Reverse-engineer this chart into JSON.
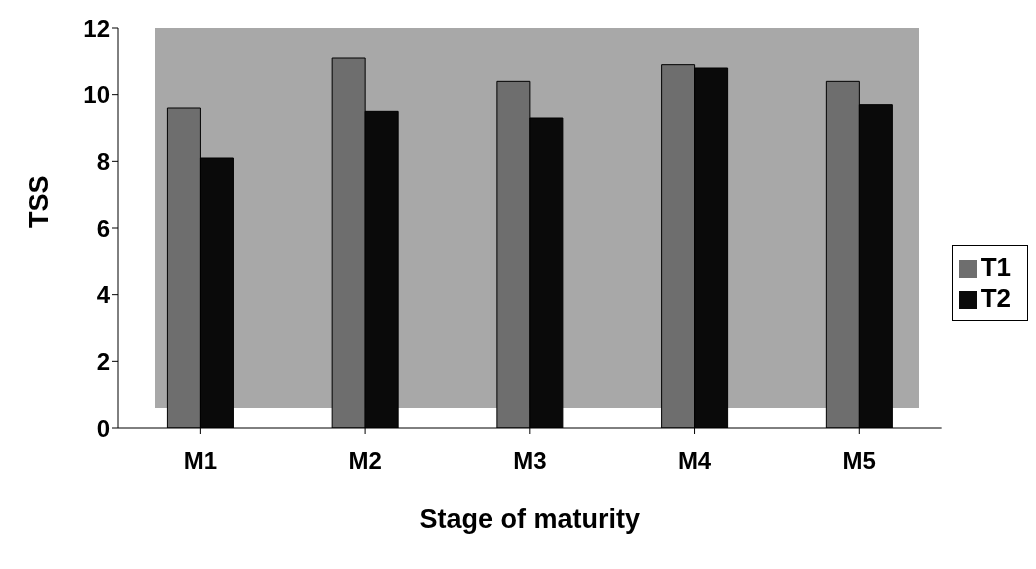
{
  "chart_data": {
    "type": "bar",
    "xlabel": "Stage of maturity",
    "ylabel": "TSS",
    "categories": [
      "M1",
      "M2",
      "M3",
      "M4",
      "M5"
    ],
    "series": [
      {
        "name": "T1",
        "color": "#6e6e6e",
        "values": [
          9.6,
          11.1,
          10.4,
          10.9,
          10.4
        ]
      },
      {
        "name": "T2",
        "color": "#0a0a0a",
        "values": [
          8.1,
          9.5,
          9.3,
          10.8,
          9.7
        ]
      }
    ],
    "ylim": [
      0,
      12
    ],
    "yticks": [
      0,
      2,
      4,
      6,
      8,
      10,
      12
    ],
    "grid": false,
    "legend": "right"
  }
}
